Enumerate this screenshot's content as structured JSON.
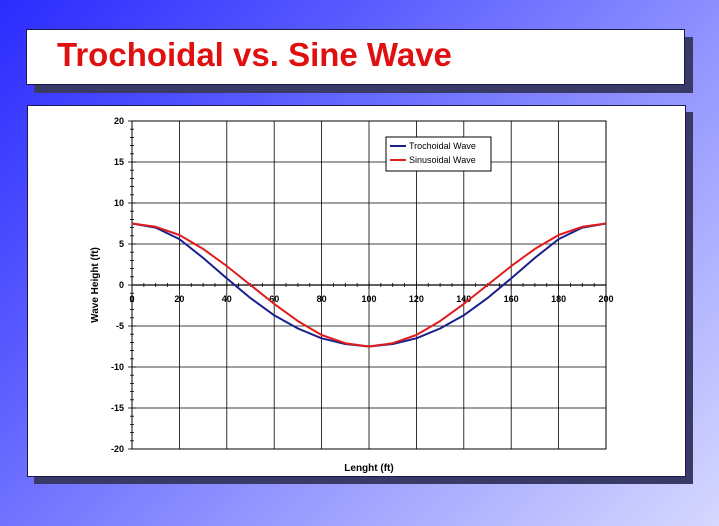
{
  "title": "Trochoidal vs. Sine Wave",
  "chart_data": {
    "type": "line",
    "title": "",
    "xlabel": "Lenght (ft)",
    "ylabel": "Wave Height (ft)",
    "xlim": [
      0,
      200
    ],
    "ylim": [
      -20,
      20
    ],
    "xticks": [
      "0",
      "20",
      "40",
      "60",
      "80",
      "100",
      "120",
      "140",
      "160",
      "180",
      "200"
    ],
    "yticks": [
      "20",
      "15",
      "10",
      "5",
      "0",
      "-5",
      "-10",
      "-15",
      "-20"
    ],
    "grid": true,
    "legend_position": "top-right",
    "series": [
      {
        "name": "Trochoidal Wave",
        "color": "#1a1f8c",
        "x": [
          0,
          10,
          20,
          30,
          40,
          50,
          60,
          70,
          80,
          90,
          100,
          110,
          120,
          130,
          140,
          150,
          160,
          170,
          180,
          190,
          200
        ],
        "y": [
          7.5,
          7.0,
          5.6,
          3.3,
          0.8,
          -1.6,
          -3.7,
          -5.3,
          -6.5,
          -7.2,
          -7.5,
          -7.2,
          -6.5,
          -5.3,
          -3.7,
          -1.6,
          0.8,
          3.3,
          5.6,
          7.0,
          7.5
        ]
      },
      {
        "name": "Sinusoidal Wave",
        "color": "#e01c1c",
        "x": [
          0,
          10,
          20,
          30,
          40,
          50,
          60,
          70,
          80,
          90,
          100,
          110,
          120,
          130,
          140,
          150,
          160,
          170,
          180,
          190,
          200
        ],
        "y": [
          7.5,
          7.1,
          6.1,
          4.4,
          2.3,
          0.0,
          -2.3,
          -4.4,
          -6.1,
          -7.1,
          -7.5,
          -7.1,
          -6.1,
          -4.4,
          -2.3,
          0.0,
          2.3,
          4.4,
          6.1,
          7.1,
          7.5
        ]
      }
    ]
  }
}
